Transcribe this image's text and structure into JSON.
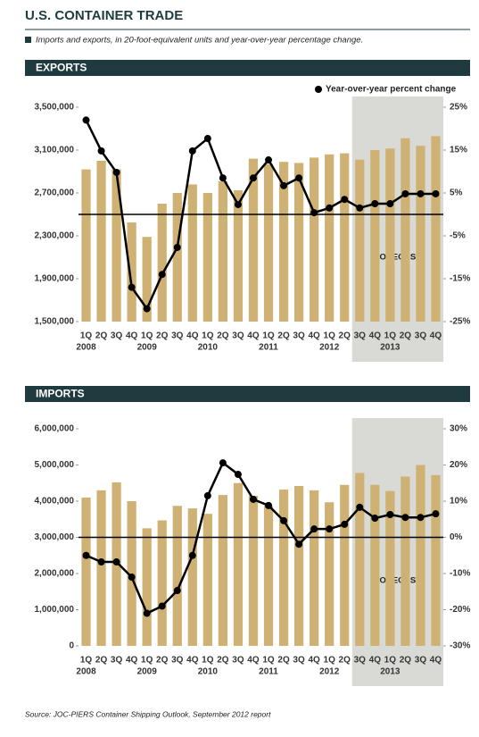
{
  "header": {
    "title": "U.S. CONTAINER TRADE",
    "subtitle": "Imports and exports, in 20-foot-equivalent units and year-over-year percentage change."
  },
  "chart_data": [
    {
      "type": "bar-line",
      "title": "EXPORTS",
      "categories": [
        "1Q",
        "2Q",
        "3Q",
        "4Q",
        "1Q",
        "2Q",
        "3Q",
        "4Q",
        "1Q",
        "2Q",
        "3Q",
        "4Q",
        "1Q",
        "2Q",
        "3Q",
        "4Q",
        "1Q",
        "2Q",
        "3Q",
        "4Q",
        "1Q",
        "2Q",
        "3Q",
        "4Q"
      ],
      "category_years": [
        "2008",
        null,
        null,
        null,
        "2009",
        null,
        null,
        null,
        "2010",
        null,
        null,
        null,
        "2011",
        null,
        null,
        null,
        "2012",
        null,
        null,
        null,
        "2013",
        null,
        null,
        null
      ],
      "series": [
        {
          "color": "#cfb273",
          "values": [
            2920000,
            3000000,
            2920000,
            2425000,
            2290000,
            2600000,
            2700000,
            2780000,
            2700000,
            2810000,
            2725000,
            3020000,
            2970000,
            2990000,
            2980000,
            3030000,
            3060000,
            3070000,
            3010000,
            3100000,
            3115000,
            3210000,
            3140000,
            3230000
          ]
        },
        {
          "name": "Year-over-year percent change",
          "color": "#000000",
          "axis": "y2",
          "values": [
            22,
            14.8,
            9.8,
            -17,
            -22,
            -14,
            -7.7,
            14.8,
            17.7,
            8.5,
            2.3,
            8.5,
            12.7,
            6.7,
            8.5,
            0.4,
            1.5,
            3.5,
            1.5,
            2.5,
            2.5,
            4.8,
            4.8,
            4.8
          ]
        }
      ],
      "ylim": [
        1500000,
        3500000
      ],
      "yticks": [
        {
          "value": 1500000,
          "label": "1,500,000"
        },
        {
          "value": 1900000,
          "label": "1,900,000"
        },
        {
          "value": 2300000,
          "label": "2,300,000"
        },
        {
          "value": 2700000,
          "label": "2,700,000"
        },
        {
          "value": 3100000,
          "label": "3,100,000"
        },
        {
          "value": 3500000,
          "label": "3,500,000"
        }
      ],
      "y2lim": [
        -25,
        25
      ],
      "y2ticks": [
        {
          "value": -25,
          "label": "-25%"
        },
        {
          "value": -15,
          "label": "-15%"
        },
        {
          "value": -5,
          "label": "-5%"
        },
        {
          "value": 5,
          "label": "5%"
        },
        {
          "value": 15,
          "label": "15%"
        },
        {
          "value": 25,
          "label": "25%"
        }
      ],
      "annotation": {
        "text": "FORECAST",
        "from_index": 18
      }
    },
    {
      "type": "bar-line",
      "title": "IMPORTS",
      "categories": [
        "1Q",
        "2Q",
        "3Q",
        "4Q",
        "1Q",
        "2Q",
        "3Q",
        "4Q",
        "1Q",
        "2Q",
        "3Q",
        "4Q",
        "1Q",
        "2Q",
        "3Q",
        "4Q",
        "1Q",
        "2Q",
        "3Q",
        "4Q",
        "1Q",
        "2Q",
        "3Q",
        "4Q"
      ],
      "category_years": [
        "2008",
        null,
        null,
        null,
        "2009",
        null,
        null,
        null,
        "2010",
        null,
        null,
        null,
        "2011",
        null,
        null,
        null,
        "2012",
        null,
        null,
        null,
        "2013",
        null,
        null,
        null
      ],
      "series": [
        {
          "color": "#cfb273",
          "values": [
            4100000,
            4300000,
            4520000,
            4000000,
            3250000,
            3470000,
            3870000,
            3800000,
            3650000,
            4170000,
            4500000,
            4150000,
            3870000,
            4320000,
            4420000,
            4300000,
            3970000,
            4450000,
            4780000,
            4450000,
            4280000,
            4680000,
            5000000,
            4720000
          ]
        },
        {
          "color": "#000000",
          "axis": "y2",
          "values": [
            -5,
            -6.8,
            -6.8,
            -11,
            -21,
            -19,
            -14.7,
            -5,
            11.5,
            20.6,
            17.4,
            10.5,
            8.8,
            4.6,
            -1.9,
            2.3,
            2.3,
            3.6,
            8.3,
            5.3,
            6.3,
            5.5,
            5.5,
            6.5
          ]
        }
      ],
      "ylim": [
        0,
        6000000
      ],
      "yticks": [
        0,
        {
          "value": 1000000,
          "label": "1,000,000"
        },
        {
          "value": 2000000,
          "label": "2,000,000"
        },
        {
          "value": 3000000,
          "label": "3,000,000"
        },
        {
          "value": 4000000,
          "label": "4,000,000"
        },
        {
          "value": 5000000,
          "label": "5,000,000"
        },
        {
          "value": 6000000,
          "label": "6,000,000"
        }
      ],
      "y2lim": [
        -30,
        30
      ],
      "y2ticks": [
        {
          "value": -30,
          "label": "-30%"
        },
        {
          "value": -20,
          "label": "-20%"
        },
        {
          "value": -10,
          "label": "-10%"
        },
        {
          "value": 0,
          "label": "0%"
        },
        {
          "value": 10,
          "label": "10%"
        },
        {
          "value": 20,
          "label": "20%"
        },
        {
          "value": 30,
          "label": "30%"
        }
      ],
      "annotation": {
        "text": "FORECAST",
        "from_index": 18
      }
    }
  ],
  "source": "Source: JOC-PIERS Container Shipping Outlook, September 2012 report"
}
